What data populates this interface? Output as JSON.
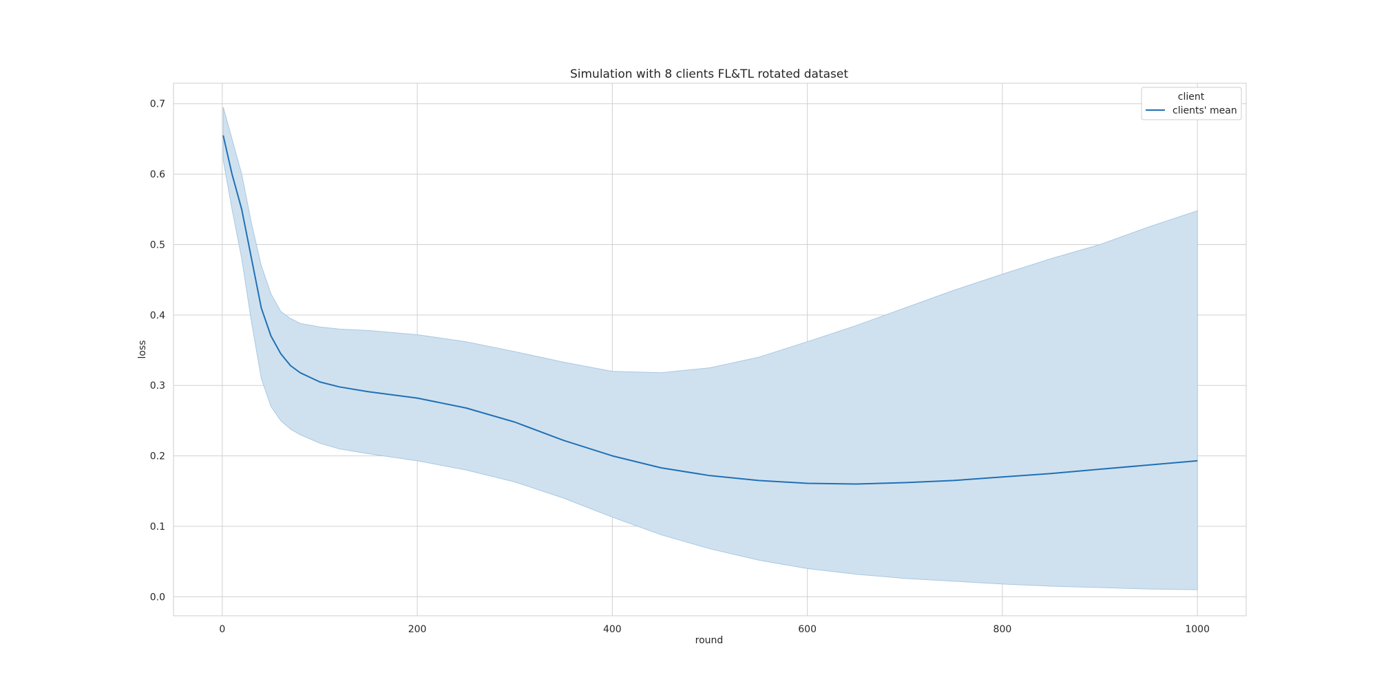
{
  "chart_data": {
    "type": "line",
    "title": "Simulation with 8 clients FL&TL rotated dataset",
    "xlabel": "round",
    "ylabel": "loss",
    "xlim": [
      -50,
      1050
    ],
    "ylim": [
      -0.027,
      0.729
    ],
    "x_ticks": [
      0,
      200,
      400,
      600,
      800,
      1000
    ],
    "x_tick_labels": [
      "0",
      "200",
      "400",
      "600",
      "800",
      "1000"
    ],
    "y_ticks": [
      0.0,
      0.1,
      0.2,
      0.3,
      0.4,
      0.5,
      0.6,
      0.7
    ],
    "y_tick_labels": [
      "0.0",
      "0.1",
      "0.2",
      "0.3",
      "0.4",
      "0.5",
      "0.6",
      "0.7"
    ],
    "grid": true,
    "legend": {
      "title": "client",
      "placement": "top-right",
      "entries": [
        "clients' mean"
      ]
    },
    "colors": {
      "line": "#1f6fb5",
      "band": "#cfe1ef",
      "band_edge": "#a9c7e2",
      "grid": "#d0d0d0",
      "frame": "#cccccc"
    },
    "series": [
      {
        "name": "clients' mean",
        "x": [
          1,
          10,
          20,
          30,
          40,
          50,
          60,
          70,
          80,
          100,
          120,
          150,
          200,
          250,
          300,
          350,
          400,
          450,
          500,
          550,
          600,
          650,
          700,
          750,
          800,
          850,
          900,
          950,
          1000
        ],
        "mean": [
          0.655,
          0.6,
          0.55,
          0.48,
          0.41,
          0.37,
          0.345,
          0.328,
          0.318,
          0.305,
          0.298,
          0.291,
          0.282,
          0.268,
          0.248,
          0.222,
          0.2,
          0.183,
          0.172,
          0.165,
          0.161,
          0.16,
          0.162,
          0.165,
          0.17,
          0.175,
          0.181,
          0.187,
          0.193
        ],
        "upper": [
          0.695,
          0.65,
          0.6,
          0.53,
          0.47,
          0.43,
          0.405,
          0.395,
          0.388,
          0.383,
          0.38,
          0.378,
          0.372,
          0.362,
          0.348,
          0.333,
          0.32,
          0.318,
          0.325,
          0.34,
          0.362,
          0.385,
          0.41,
          0.435,
          0.458,
          0.48,
          0.5,
          0.525,
          0.548
        ],
        "lower": [
          0.62,
          0.55,
          0.48,
          0.39,
          0.31,
          0.27,
          0.25,
          0.238,
          0.23,
          0.218,
          0.21,
          0.203,
          0.193,
          0.18,
          0.163,
          0.14,
          0.113,
          0.088,
          0.068,
          0.052,
          0.04,
          0.032,
          0.026,
          0.022,
          0.018,
          0.015,
          0.013,
          0.011,
          0.01
        ]
      }
    ]
  }
}
